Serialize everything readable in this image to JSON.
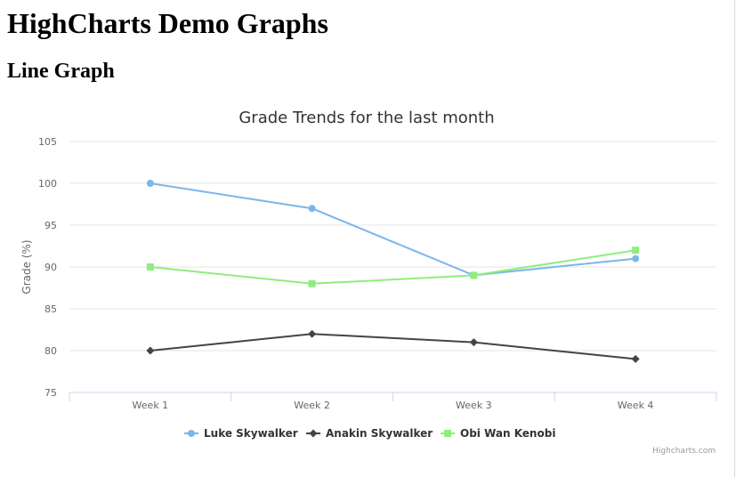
{
  "page": {
    "heading": "HighCharts Demo Graphs",
    "section_heading": "Line Graph"
  },
  "chart_data": {
    "type": "line",
    "title": "Grade Trends for the last month",
    "xlabel": "",
    "ylabel": "Grade (%)",
    "categories": [
      "Week 1",
      "Week 2",
      "Week 3",
      "Week 4"
    ],
    "ylim": [
      75,
      105
    ],
    "yticks": [
      75,
      80,
      85,
      90,
      95,
      100,
      105
    ],
    "grid": true,
    "legend_position": "bottom-center",
    "series": [
      {
        "name": "Luke Skywalker",
        "values": [
          100,
          97,
          89,
          91
        ],
        "color": "#7cb5ec",
        "marker": "circle"
      },
      {
        "name": "Anakin Skywalker",
        "values": [
          80,
          82,
          81,
          79
        ],
        "color": "#434348",
        "marker": "diamond"
      },
      {
        "name": "Obi Wan Kenobi",
        "values": [
          90,
          88,
          89,
          92
        ],
        "color": "#90ed7d",
        "marker": "square"
      }
    ],
    "credits": "Highcharts.com"
  }
}
